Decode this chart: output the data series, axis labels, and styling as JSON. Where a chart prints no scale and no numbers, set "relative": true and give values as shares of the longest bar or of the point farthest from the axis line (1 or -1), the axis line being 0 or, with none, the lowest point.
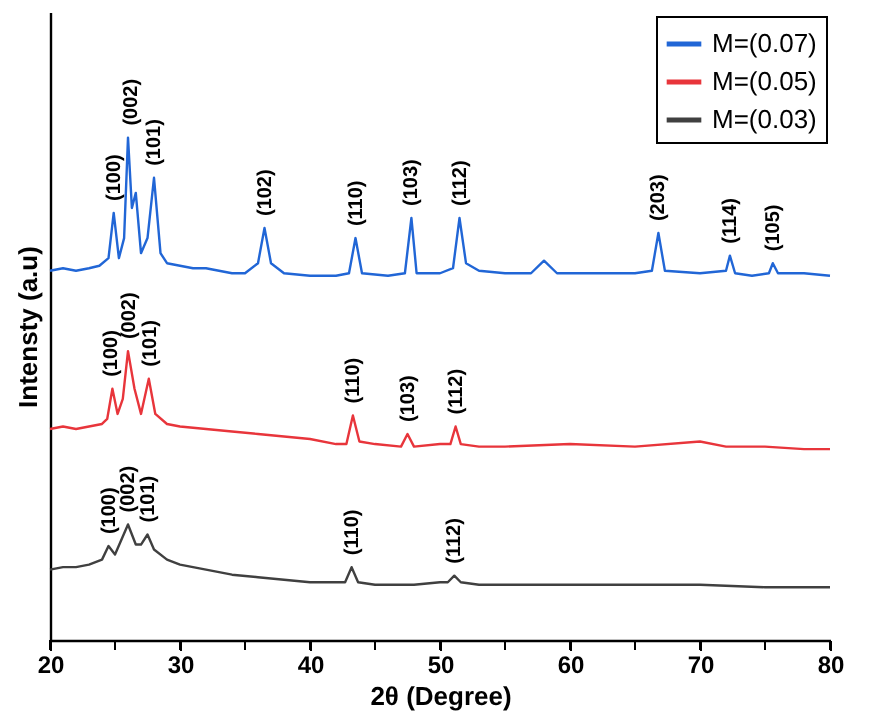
{
  "chart_data": {
    "type": "line",
    "relative": true,
    "xlabel": "2θ (Degree)",
    "ylabel": "Intensty  (a.u)",
    "xlim": [
      20,
      80
    ],
    "xticks": [
      20,
      {
        "value": 25,
        "label": null
      },
      30,
      {
        "value": 35,
        "label": null
      },
      40,
      {
        "value": 45,
        "label": null
      },
      50,
      {
        "value": 55,
        "label": null
      },
      60,
      {
        "value": 65,
        "label": null
      },
      70,
      {
        "value": 75,
        "label": null
      },
      80
    ],
    "grid": false,
    "legend": "top right",
    "series": [
      {
        "name": "M=(0.07)",
        "color": "#2166d6",
        "x": [
          20,
          21,
          22,
          23,
          23.8,
          24.5,
          24.9,
          25.3,
          25.7,
          26.0,
          26.3,
          26.6,
          27.0,
          27.5,
          28.0,
          28.5,
          29,
          30,
          31,
          32,
          33,
          34,
          35,
          36,
          36.5,
          37,
          38,
          40,
          42,
          43,
          43.5,
          44,
          46,
          47.3,
          47.8,
          48.2,
          50,
          51,
          51.5,
          52,
          53,
          55,
          57,
          58,
          59,
          62,
          65,
          66.3,
          66.8,
          67.3,
          70,
          72,
          72.3,
          72.7,
          74,
          75.3,
          75.6,
          76,
          78,
          80
        ],
        "values": [
          0.735,
          0.74,
          0.735,
          0.74,
          0.745,
          0.76,
          0.85,
          0.76,
          0.8,
          1.0,
          0.86,
          0.89,
          0.77,
          0.8,
          0.92,
          0.77,
          0.75,
          0.745,
          0.74,
          0.74,
          0.735,
          0.73,
          0.73,
          0.75,
          0.82,
          0.75,
          0.73,
          0.725,
          0.725,
          0.73,
          0.8,
          0.73,
          0.725,
          0.73,
          0.84,
          0.73,
          0.73,
          0.74,
          0.84,
          0.75,
          0.735,
          0.73,
          0.73,
          0.755,
          0.73,
          0.73,
          0.73,
          0.735,
          0.81,
          0.735,
          0.73,
          0.735,
          0.765,
          0.73,
          0.725,
          0.73,
          0.75,
          0.73,
          0.73,
          0.725
        ]
      },
      {
        "name": "M=(0.05)",
        "color": "#e8353b",
        "x": [
          20,
          21,
          22,
          23,
          24,
          24.4,
          24.8,
          25.2,
          25.6,
          26.0,
          26.5,
          27.0,
          27.6,
          28.1,
          29,
          30,
          32,
          34,
          36,
          38,
          40,
          42,
          42.8,
          43.3,
          43.8,
          45,
          47,
          47.5,
          48,
          50,
          50.8,
          51.2,
          51.6,
          53,
          55,
          60,
          65,
          70,
          72,
          75,
          78,
          80
        ],
        "values": [
          0.42,
          0.425,
          0.42,
          0.425,
          0.43,
          0.44,
          0.5,
          0.45,
          0.48,
          0.575,
          0.5,
          0.45,
          0.52,
          0.45,
          0.43,
          0.425,
          0.42,
          0.415,
          0.41,
          0.405,
          0.4,
          0.39,
          0.39,
          0.447,
          0.395,
          0.39,
          0.385,
          0.41,
          0.385,
          0.39,
          0.39,
          0.425,
          0.39,
          0.385,
          0.385,
          0.39,
          0.385,
          0.395,
          0.385,
          0.385,
          0.38,
          0.38
        ]
      },
      {
        "name": "M=(0.03)",
        "color": "#404040",
        "x": [
          20,
          21,
          22,
          23,
          24,
          24.5,
          25,
          25.5,
          26,
          26.6,
          27,
          27.5,
          28,
          29,
          30,
          32,
          34,
          36,
          38,
          40,
          42,
          42.7,
          43.2,
          43.7,
          45,
          48,
          50,
          50.6,
          51.1,
          51.6,
          53,
          55,
          60,
          65,
          70,
          75,
          80
        ],
        "values": [
          0.14,
          0.145,
          0.145,
          0.15,
          0.16,
          0.187,
          0.17,
          0.2,
          0.23,
          0.19,
          0.19,
          0.21,
          0.18,
          0.16,
          0.15,
          0.14,
          0.13,
          0.125,
          0.12,
          0.115,
          0.115,
          0.115,
          0.145,
          0.115,
          0.11,
          0.11,
          0.115,
          0.115,
          0.128,
          0.115,
          0.11,
          0.11,
          0.11,
          0.11,
          0.11,
          0.105,
          0.105
        ]
      }
    ],
    "annotations": [
      {
        "text": "(100)",
        "x": 24.9,
        "y": 0.85
      },
      {
        "text": "(002)",
        "x": 26.2,
        "y": 1.0
      },
      {
        "text": "(101)",
        "x": 28.0,
        "y": 0.92
      },
      {
        "text": "(102)",
        "x": 36.5,
        "y": 0.82
      },
      {
        "text": "(110)",
        "x": 43.5,
        "y": 0.8
      },
      {
        "text": "(103)",
        "x": 47.8,
        "y": 0.84
      },
      {
        "text": "(112)",
        "x": 51.5,
        "y": 0.84
      },
      {
        "text": "(203)",
        "x": 66.8,
        "y": 0.81
      },
      {
        "text": "(114)",
        "x": 72.3,
        "y": 0.765
      },
      {
        "text": "(105)",
        "x": 75.6,
        "y": 0.75
      },
      {
        "text": "(100)",
        "x": 24.7,
        "y": 0.5
      },
      {
        "text": "(002)",
        "x": 26.1,
        "y": 0.575
      },
      {
        "text": "(101)",
        "x": 27.7,
        "y": 0.52
      },
      {
        "text": "(110)",
        "x": 43.3,
        "y": 0.447
      },
      {
        "text": "(103)",
        "x": 47.5,
        "y": 0.41
      },
      {
        "text": "(112)",
        "x": 51.2,
        "y": 0.425
      },
      {
        "text": "(100)",
        "x": 24.5,
        "y": 0.187
      },
      {
        "text": "(002)",
        "x": 26.0,
        "y": 0.23
      },
      {
        "text": "(101)",
        "x": 27.5,
        "y": 0.21
      },
      {
        "text": "(110)",
        "x": 43.2,
        "y": 0.145
      },
      {
        "text": "(112)",
        "x": 51.1,
        "y": 0.128
      }
    ]
  }
}
